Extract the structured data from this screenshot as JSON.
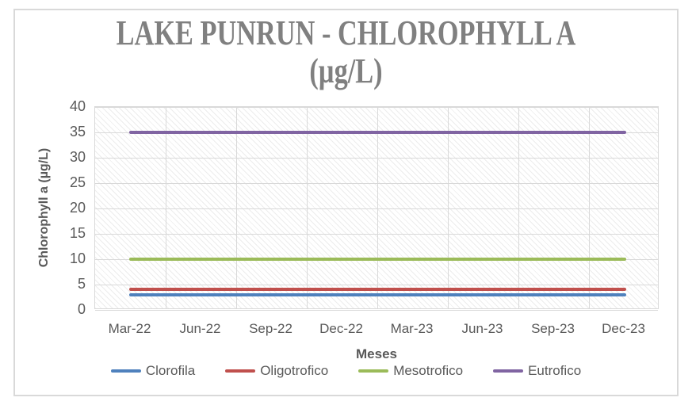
{
  "window": {
    "background": "#ffffff",
    "frame_border_color": "#D9D9D9"
  },
  "chart": {
    "title_lines": [
      "LAKE PUNRUN - CHLOROPHYLL A",
      "(µg/L)"
    ],
    "title_color": "#808080",
    "axis_text_color": "#595959",
    "gridline_color": "#D9D9D9"
  },
  "chart_data": {
    "type": "line",
    "title": "LAKE PUNRUN - CHLOROPHYLL A (µg/L)",
    "xlabel": "Meses",
    "ylabel": "Chlorophyll a (µg/L)",
    "categories": [
      "Mar-22",
      "Jun-22",
      "Sep-22",
      "Dec-22",
      "Mar-23",
      "Jun-23",
      "Sep-23",
      "Dec-23"
    ],
    "series": [
      {
        "name": "Clorofila",
        "color": "#4F81BD",
        "values": [
          3,
          3,
          3,
          3,
          3,
          3,
          3,
          3
        ]
      },
      {
        "name": "Oligotrofico",
        "color": "#C0504D",
        "values": [
          4,
          4,
          4,
          4,
          4,
          4,
          4,
          4
        ]
      },
      {
        "name": "Mesotrofico",
        "color": "#9BBB59",
        "values": [
          10,
          10,
          10,
          10,
          10,
          10,
          10,
          10
        ]
      },
      {
        "name": "Eutrofico",
        "color": "#8064A2",
        "values": [
          35,
          35,
          35,
          35,
          35,
          35,
          35,
          35
        ]
      }
    ],
    "ylim": [
      0,
      40
    ],
    "yticks": [
      0,
      5,
      10,
      15,
      20,
      25,
      30,
      35,
      40
    ],
    "grid": true,
    "plot_background": "light-diagonal-hatch",
    "legend_position": "bottom"
  }
}
